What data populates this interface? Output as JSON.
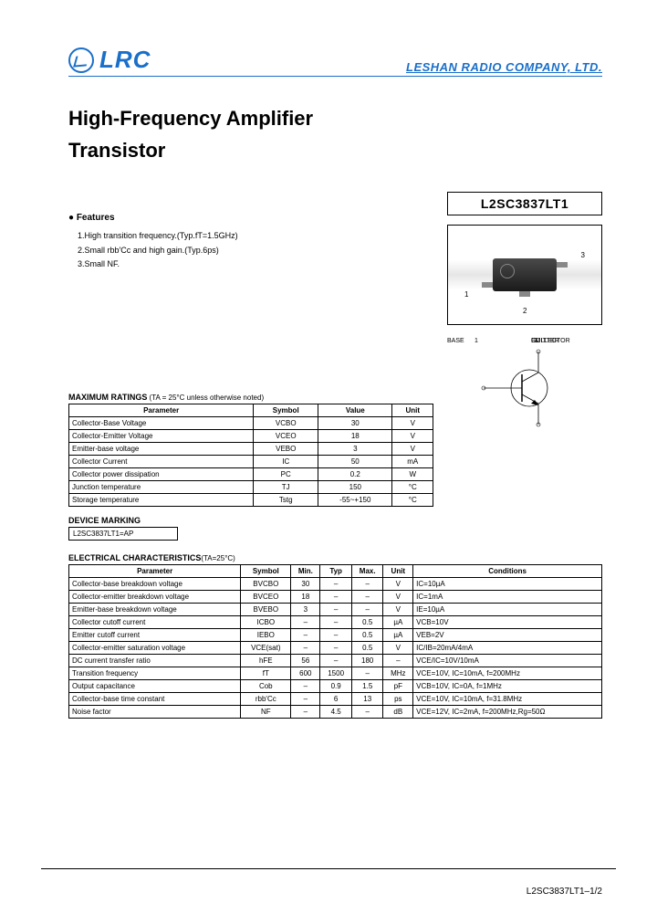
{
  "header": {
    "logo_text": "LRC",
    "company": "LESHAN RADIO COMPANY, LTD."
  },
  "title_line1": "High-Frequency Amplifier",
  "title_line2": "Transistor",
  "part_number": "L2SC3837LT1",
  "features": {
    "heading": "Features",
    "items": [
      "1.High transition frequency.(Typ.fT=1.5GHz)",
      "2.Small rbb'Cc and high gain.(Typ.6ps)",
      "3.Small NF."
    ]
  },
  "package": {
    "pin1": "1",
    "pin2": "2",
    "pin3": "3",
    "collector": "COLLECTOR",
    "base": "BASE",
    "emitter": "EMITTER"
  },
  "max_ratings": {
    "heading": "MAXIMUM RATINGS",
    "condition": " (TA = 25°C unless otherwise noted)",
    "cols": [
      "Parameter",
      "Symbol",
      "Value",
      "Unit"
    ],
    "rows": [
      [
        "Collector-Base Voltage",
        "VCBO",
        "30",
        "V"
      ],
      [
        "Collector-Emitter Voltage",
        "VCEO",
        "18",
        "V"
      ],
      [
        "Emitter-base voltage",
        "VEBO",
        "3",
        "V"
      ],
      [
        "Collector Current",
        "IC",
        "50",
        "mA"
      ],
      [
        "Collector power dissipation",
        "PC",
        "0.2",
        "W"
      ],
      [
        "Junction temperature",
        "TJ",
        "150",
        "°C"
      ],
      [
        "Storage temperature",
        "Tstg",
        "-55~+150",
        "°C"
      ]
    ]
  },
  "marking": {
    "heading": "DEVICE MARKING",
    "value": "L2SC3837LT1=AP"
  },
  "elec": {
    "heading": "ELECTRICAL CHARACTERISTICS",
    "condition": "(TA=25°C)",
    "cols": [
      "Parameter",
      "Symbol",
      "Min.",
      "Typ",
      "Max.",
      "Unit",
      "Conditions"
    ],
    "rows": [
      [
        "Collector-base breakdown voltage",
        "BVCBO",
        "30",
        "–",
        "–",
        "V",
        "IC=10µA"
      ],
      [
        "Collector-emitter breakdown voltage",
        "BVCEO",
        "18",
        "–",
        "–",
        "V",
        "IC=1mA"
      ],
      [
        "Emitter-base breakdown voltage",
        "BVEBO",
        "3",
        "–",
        "–",
        "V",
        "IE=10µA"
      ],
      [
        "Collector cutoff current",
        "ICBO",
        "–",
        "–",
        "0.5",
        "µA",
        "VCB=10V"
      ],
      [
        "Emitter cutoff current",
        "IEBO",
        "–",
        "–",
        "0.5",
        "µA",
        "VEB=2V"
      ],
      [
        "Collector-emitter saturation voltage",
        "VCE(sat)",
        "–",
        "–",
        "0.5",
        "V",
        "IC/IB=20mA/4mA"
      ],
      [
        "DC current transfer ratio",
        "hFE",
        "56",
        "–",
        "180",
        "–",
        "VCE/IC=10V/10mA"
      ],
      [
        "Transition frequency",
        "fT",
        "600",
        "1500",
        "–",
        "MHz",
        "VCE=10V, IC=10mA, f=200MHz"
      ],
      [
        "Output capacitance",
        "Cob",
        "–",
        "0.9",
        "1.5",
        "pF",
        "VCB=10V, IC=0A, f=1MHz"
      ],
      [
        "Collector-base time constant",
        "rbb'Cc",
        "–",
        "6",
        "13",
        "ps",
        "VCE=10V, IC=10mA, f=31.8MHz"
      ],
      [
        "Noise factor",
        "NF",
        "–",
        "4.5",
        "–",
        "dB",
        "VCE=12V, IC=2mA, f=200MHz,Rg=50Ω"
      ]
    ]
  },
  "footer": "L2SC3837LT1–1/2"
}
